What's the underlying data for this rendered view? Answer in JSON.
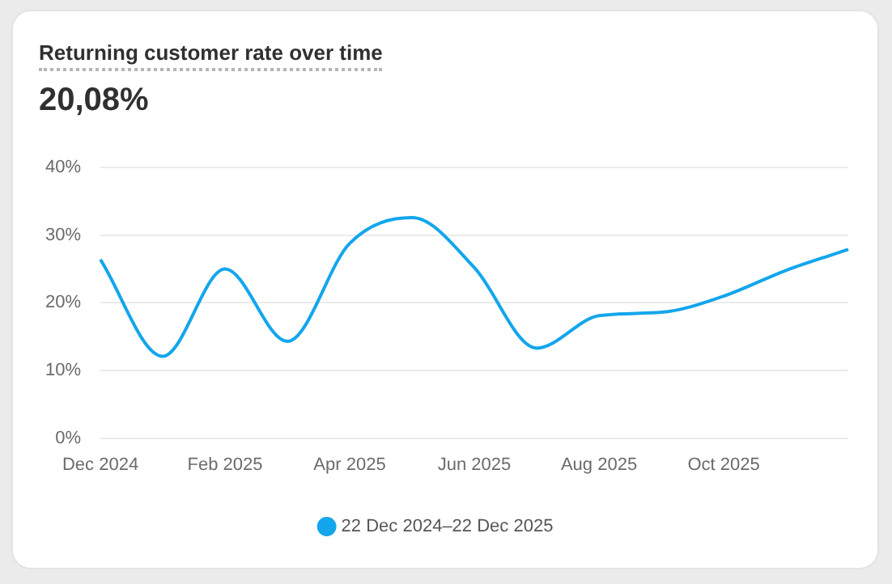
{
  "chart_data": {
    "type": "line",
    "title": "Returning customer rate over time",
    "subtitle": "20,08%",
    "categories": [
      "Dec 2024",
      null,
      "Feb 2025",
      null,
      "Apr 2025",
      null,
      "Jun 2025",
      null,
      "Aug 2025",
      null,
      "Oct 2025",
      null,
      null
    ],
    "series": [
      {
        "name": "22 Dec 2024–22 Dec 2025",
        "color": "#13a6ec",
        "values": [
          26.4,
          12.1,
          25.0,
          14.3,
          28.8,
          32.6,
          25.2,
          13.3,
          18.1,
          18.6,
          21.0,
          24.8,
          27.9
        ]
      }
    ],
    "ylim": [
      0,
      40
    ],
    "yticks": [
      {
        "value": 0,
        "label": "0%"
      },
      {
        "value": 10,
        "label": "10%"
      },
      {
        "value": 20,
        "label": "20%"
      },
      {
        "value": 30,
        "label": "30%"
      },
      {
        "value": 40,
        "label": "40%"
      }
    ],
    "grid": "y",
    "legend": "bottom",
    "marker": "none",
    "line_style": "solid"
  }
}
